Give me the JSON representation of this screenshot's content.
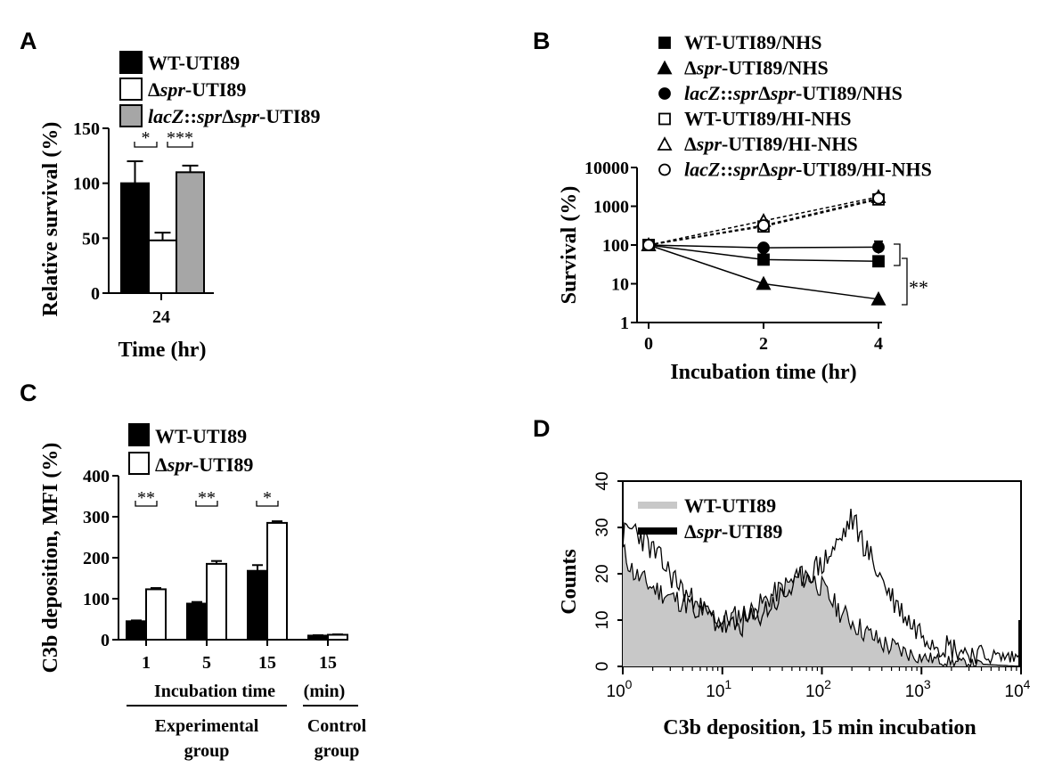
{
  "chart_data": [
    {
      "panel": "A",
      "type": "bar",
      "xlabel": "Time (hr)",
      "ylabel": "Relative survival (%)",
      "ylim": [
        0,
        150
      ],
      "yticks": [
        "0",
        "50",
        "100",
        "150"
      ],
      "categories": [
        "24"
      ],
      "legend": [
        {
          "prefix": "WT-UTI89",
          "italic": "",
          "suffix": "",
          "fill": "#000000"
        },
        {
          "prefix": "Δ",
          "italic": "spr",
          "suffix": "-UTI89",
          "fill": "#ffffff"
        },
        {
          "prefix": "",
          "italic": "lacZ",
          "suffix": "::",
          "italic2": "spr",
          "suffix2": "Δ",
          "italic3": "spr",
          "suffix3": "-UTI89",
          "fill": "#a6a6a6"
        }
      ],
      "series": [
        {
          "name": "WT-UTI89",
          "values": [
            100
          ],
          "error": [
            20
          ]
        },
        {
          "name": "Δspr-UTI89",
          "values": [
            48
          ],
          "error": [
            7
          ]
        },
        {
          "name": "lacZ::sprΔspr-UTI89",
          "values": [
            110
          ],
          "error": [
            6
          ]
        }
      ],
      "significance": [
        "*",
        "***"
      ]
    },
    {
      "panel": "B",
      "type": "line",
      "xlabel": "Incubation time (hr)",
      "ylabel": "Survival (%)",
      "yscale": "log",
      "ylim": [
        1,
        10000
      ],
      "yticks": [
        "1",
        "10",
        "100",
        "1000",
        "10000"
      ],
      "xticks": [
        "0",
        "2",
        "4"
      ],
      "x": [
        0,
        2,
        4
      ],
      "series": [
        {
          "name": "WT-UTI89/NHS",
          "marker": "square-filled",
          "values": [
            100,
            42,
            38
          ]
        },
        {
          "name": "Δspr-UTI89/NHS",
          "marker": "triangle-filled",
          "values": [
            100,
            10,
            4
          ]
        },
        {
          "name": "lacZ::sprΔspr-UTI89/NHS",
          "marker": "circle-filled",
          "values": [
            100,
            85,
            88
          ]
        },
        {
          "name": "WT-UTI89/HI-NHS",
          "marker": "square-open",
          "values": [
            100,
            300,
            1500
          ]
        },
        {
          "name": "Δspr-UTI89/HI-NHS",
          "marker": "triangle-open",
          "values": [
            100,
            420,
            1750
          ]
        },
        {
          "name": "lacZ::sprΔspr-UTI89/HI-NHS",
          "marker": "circle-open",
          "values": [
            100,
            320,
            1600
          ]
        }
      ],
      "legend_labels": [
        {
          "a": "WT-UTI89/NHS",
          "i": "",
          "b": ""
        },
        {
          "a": "Δ",
          "i": "spr",
          "b": "-UTI89/NHS"
        },
        {
          "a": "",
          "i": "lacZ",
          "b": "::",
          "i2": "spr",
          "b2": "Δ",
          "i3": "spr",
          "b3": "-UTI89/NHS"
        },
        {
          "a": "WT-UTI89/HI-NHS",
          "i": "",
          "b": ""
        },
        {
          "a": "Δ",
          "i": "spr",
          "b": "-UTI89/HI-NHS"
        },
        {
          "a": "",
          "i": "lacZ",
          "b": "::",
          "i2": "spr",
          "b2": "Δ",
          "i3": "spr",
          "b3": "-UTI89/HI-NHS"
        }
      ],
      "significance": [
        "**"
      ]
    },
    {
      "panel": "C",
      "type": "bar",
      "ylabel": "C3b deposition, MFI (%)",
      "ylim": [
        0,
        400
      ],
      "yticks": [
        "0",
        "100",
        "200",
        "300",
        "400"
      ],
      "categories": [
        "1",
        "5",
        "15",
        "15"
      ],
      "xlabel_main": "Incubation time",
      "xlabel_unit": "(min)",
      "groups": [
        "Experimental group",
        "Control group"
      ],
      "group_lines": [
        [
          "Experimental",
          "group"
        ],
        [
          "Control",
          "group"
        ]
      ],
      "legend": [
        {
          "prefix": "WT-UTI89",
          "italic": "",
          "suffix": "",
          "fill": "#000000"
        },
        {
          "prefix": "Δ",
          "italic": "spr",
          "suffix": "-UTI89",
          "fill": "#ffffff"
        }
      ],
      "series": [
        {
          "name": "WT-UTI89",
          "values": [
            45,
            88,
            168,
            10
          ],
          "error": [
            2,
            4,
            14,
            1
          ]
        },
        {
          "name": "Δspr-UTI89",
          "values": [
            123,
            185,
            285,
            12
          ],
          "error": [
            3,
            7,
            4,
            1
          ]
        }
      ],
      "significance": [
        "**",
        "**",
        "*"
      ]
    },
    {
      "panel": "D",
      "type": "area",
      "xlabel": "C3b deposition, 15 min incubation",
      "ylabel": "Counts",
      "xscale": "log",
      "xlim": [
        1,
        10000
      ],
      "ylim": [
        0,
        40
      ],
      "yticks": [
        "0",
        "10",
        "20",
        "30",
        "40"
      ],
      "xticks": [
        {
          "base": "10",
          "exp": "0"
        },
        {
          "base": "10",
          "exp": "1"
        },
        {
          "base": "10",
          "exp": "2"
        },
        {
          "base": "10",
          "exp": "3"
        },
        {
          "base": "10",
          "exp": "4"
        }
      ],
      "legend": [
        {
          "prefix": "WT-UTI89",
          "italic": "",
          "suffix": "",
          "color": "#c8c8c8"
        },
        {
          "prefix": "Δ",
          "italic": "spr",
          "suffix": "-UTI89",
          "color": "#000000"
        }
      ],
      "series": [
        {
          "name": "WT-UTI89",
          "x": [
            1,
            1.3,
            2,
            3,
            5,
            10,
            20,
            40,
            70,
            100,
            150,
            250,
            400,
            700,
            1000,
            2000,
            4000,
            10000
          ],
          "values": [
            25,
            20,
            17,
            15,
            13,
            10,
            12,
            17,
            20,
            17,
            12,
            8,
            5,
            3,
            2,
            1,
            0.5,
            0
          ]
        },
        {
          "name": "Δspr-UTI89",
          "x": [
            1,
            1.3,
            2,
            3,
            5,
            8,
            12,
            20,
            40,
            70,
            100,
            150,
            200,
            300,
            500,
            800,
            1500,
            3000,
            6000,
            10000
          ],
          "values": [
            28,
            30,
            25,
            20,
            14,
            10,
            8,
            10,
            15,
            20,
            22,
            27,
            32,
            24,
            15,
            9,
            5,
            3,
            2,
            2
          ]
        }
      ]
    }
  ]
}
